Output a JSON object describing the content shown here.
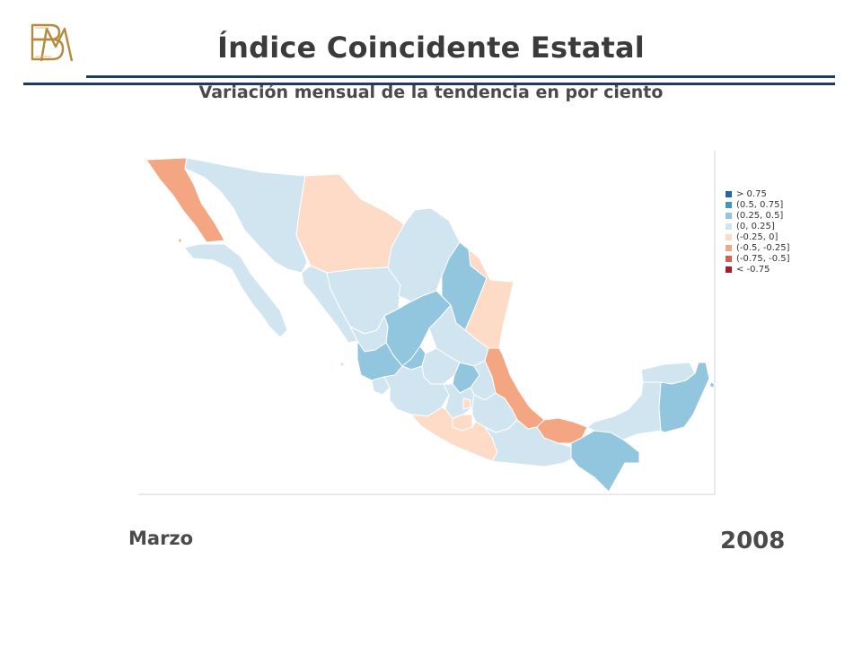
{
  "header": {
    "logo_icon": "bm-monogram-logo",
    "title": "Índice Coincidente Estatal",
    "subtitle": "Variación mensual de la tendencia en por ciento"
  },
  "period": {
    "month": "Marzo",
    "year": "2008"
  },
  "legend": {
    "items": [
      {
        "label": "> 0.75",
        "color": "#2166ac"
      },
      {
        "label": "(0.5, 0.75]",
        "color": "#4393c3"
      },
      {
        "label": "(0.25, 0.5]",
        "color": "#92c5de"
      },
      {
        "label": "(0, 0.25]",
        "color": "#d1e5f0"
      },
      {
        "label": "(-0.25, 0]",
        "color": "#fddbc7"
      },
      {
        "label": "(-0.5, -0.25]",
        "color": "#f4a582"
      },
      {
        "label": "(-0.75, -0.5]",
        "color": "#d6604d"
      },
      {
        "label": "< -0.75",
        "color": "#b2182b"
      }
    ]
  },
  "regions": [
    {
      "name": "Baja California",
      "class": "(-0.5, -0.25]"
    },
    {
      "name": "Baja California Sur",
      "class": "(0, 0.25]"
    },
    {
      "name": "Sonora",
      "class": "(0, 0.25]"
    },
    {
      "name": "Chihuahua",
      "class": "(-0.25, 0]"
    },
    {
      "name": "Coahuila",
      "class": "(0, 0.25]"
    },
    {
      "name": "Nuevo León",
      "class": "(0.25, 0.5]"
    },
    {
      "name": "Tamaulipas",
      "class": "(-0.25, 0]"
    },
    {
      "name": "Sinaloa",
      "class": "(0, 0.25]"
    },
    {
      "name": "Durango",
      "class": "(0, 0.25]"
    },
    {
      "name": "Zacatecas",
      "class": "(0.25, 0.5]"
    },
    {
      "name": "San Luis Potosí",
      "class": "(0, 0.25]"
    },
    {
      "name": "Nayarit",
      "class": "(0, 0.25]"
    },
    {
      "name": "Aguascalientes",
      "class": "(0.25, 0.5]"
    },
    {
      "name": "Jalisco",
      "class": "(0.25, 0.5]"
    },
    {
      "name": "Guanajuato",
      "class": "(0, 0.25]"
    },
    {
      "name": "Querétaro",
      "class": "(0.25, 0.5]"
    },
    {
      "name": "Hidalgo",
      "class": "(0, 0.25]"
    },
    {
      "name": "Veracruz",
      "class": "(-0.5, -0.25]"
    },
    {
      "name": "Colima",
      "class": "(0, 0.25]"
    },
    {
      "name": "Michoacán",
      "class": "(0, 0.25]"
    },
    {
      "name": "Estado de México",
      "class": "(0, 0.25]"
    },
    {
      "name": "Distrito Federal",
      "class": "(-0.25, 0]"
    },
    {
      "name": "Morelos",
      "class": "(-0.25, 0]"
    },
    {
      "name": "Tlaxcala",
      "class": "(0, 0.25]"
    },
    {
      "name": "Puebla",
      "class": "(0, 0.25]"
    },
    {
      "name": "Guerrero",
      "class": "(-0.25, 0]"
    },
    {
      "name": "Oaxaca",
      "class": "(0, 0.25]"
    },
    {
      "name": "Tabasco",
      "class": "(-0.5, -0.25]"
    },
    {
      "name": "Chiapas",
      "class": "(0.25, 0.5]"
    },
    {
      "name": "Campeche",
      "class": "(0, 0.25]"
    },
    {
      "name": "Yucatán",
      "class": "(0, 0.25]"
    },
    {
      "name": "Quintana Roo",
      "class": "(0.25, 0.5]"
    }
  ]
}
